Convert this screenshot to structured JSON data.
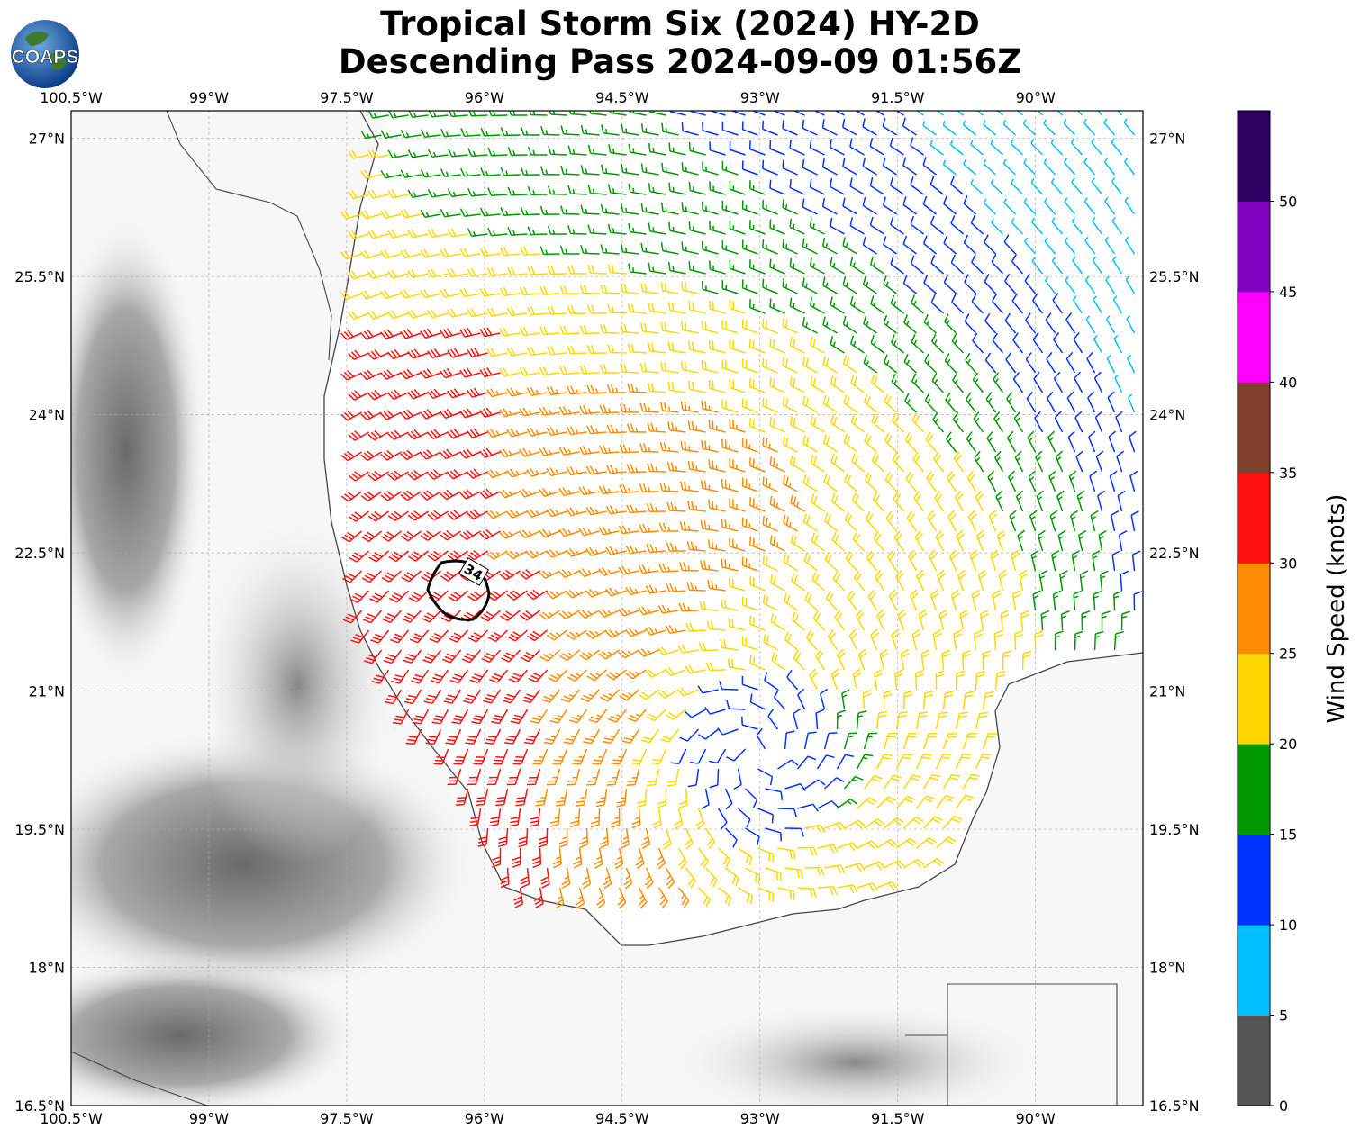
{
  "title": {
    "line1": "Tropical Storm Six (2024) HY-2D",
    "line2": "Descending Pass 2024-09-09 01:56Z"
  },
  "logo": {
    "text": "COAPS",
    "icon": "globe-logo-icon"
  },
  "map": {
    "lon_range": [
      -100.5,
      -88.83
    ],
    "lat_range": [
      16.5,
      27.3
    ],
    "lon_ticks": [
      "100.5°W",
      "99°W",
      "97.5°W",
      "96°W",
      "94.5°W",
      "93°W",
      "91.5°W",
      "90°W"
    ],
    "lat_ticks": [
      "27°N",
      "25.5°N",
      "24°N",
      "22.5°N",
      "21°N",
      "19.5°N",
      "18°N",
      "16.5°N"
    ],
    "grid": true,
    "storm_center": {
      "lon": -93.0,
      "lat": 20.3
    },
    "contour_label": "34",
    "contour_kt": 34
  },
  "colorbar": {
    "label": "Wind Speed (knots)",
    "ticks": [
      "0",
      "5",
      "10",
      "15",
      "20",
      "25",
      "30",
      "35",
      "40",
      "45",
      "50"
    ],
    "colors": [
      "#555555",
      "#00bfff",
      "#0033ff",
      "#009900",
      "#009900",
      "#ffd700",
      "#ff8c00",
      "#ff0000",
      "#7f3f2a",
      "#ff00ff",
      "#8000c0",
      "#2b0060"
    ],
    "bins": [
      {
        "min": 0,
        "max": 5,
        "color": "#555555"
      },
      {
        "min": 5,
        "max": 10,
        "color": "#00bfff"
      },
      {
        "min": 10,
        "max": 15,
        "color": "#0033ff"
      },
      {
        "min": 15,
        "max": 20,
        "color": "#009900"
      },
      {
        "min": 20,
        "max": 25,
        "color": "#ffd700"
      },
      {
        "min": 25,
        "max": 30,
        "color": "#ff8c00"
      },
      {
        "min": 30,
        "max": 35,
        "color": "#ff1010"
      },
      {
        "min": 35,
        "max": 40,
        "color": "#7f3f2a"
      },
      {
        "min": 40,
        "max": 45,
        "color": "#ff00ff"
      },
      {
        "min": 45,
        "max": 50,
        "color": "#8000c0"
      },
      {
        "min": 50,
        "max": 55,
        "color": "#2b0060"
      }
    ]
  }
}
